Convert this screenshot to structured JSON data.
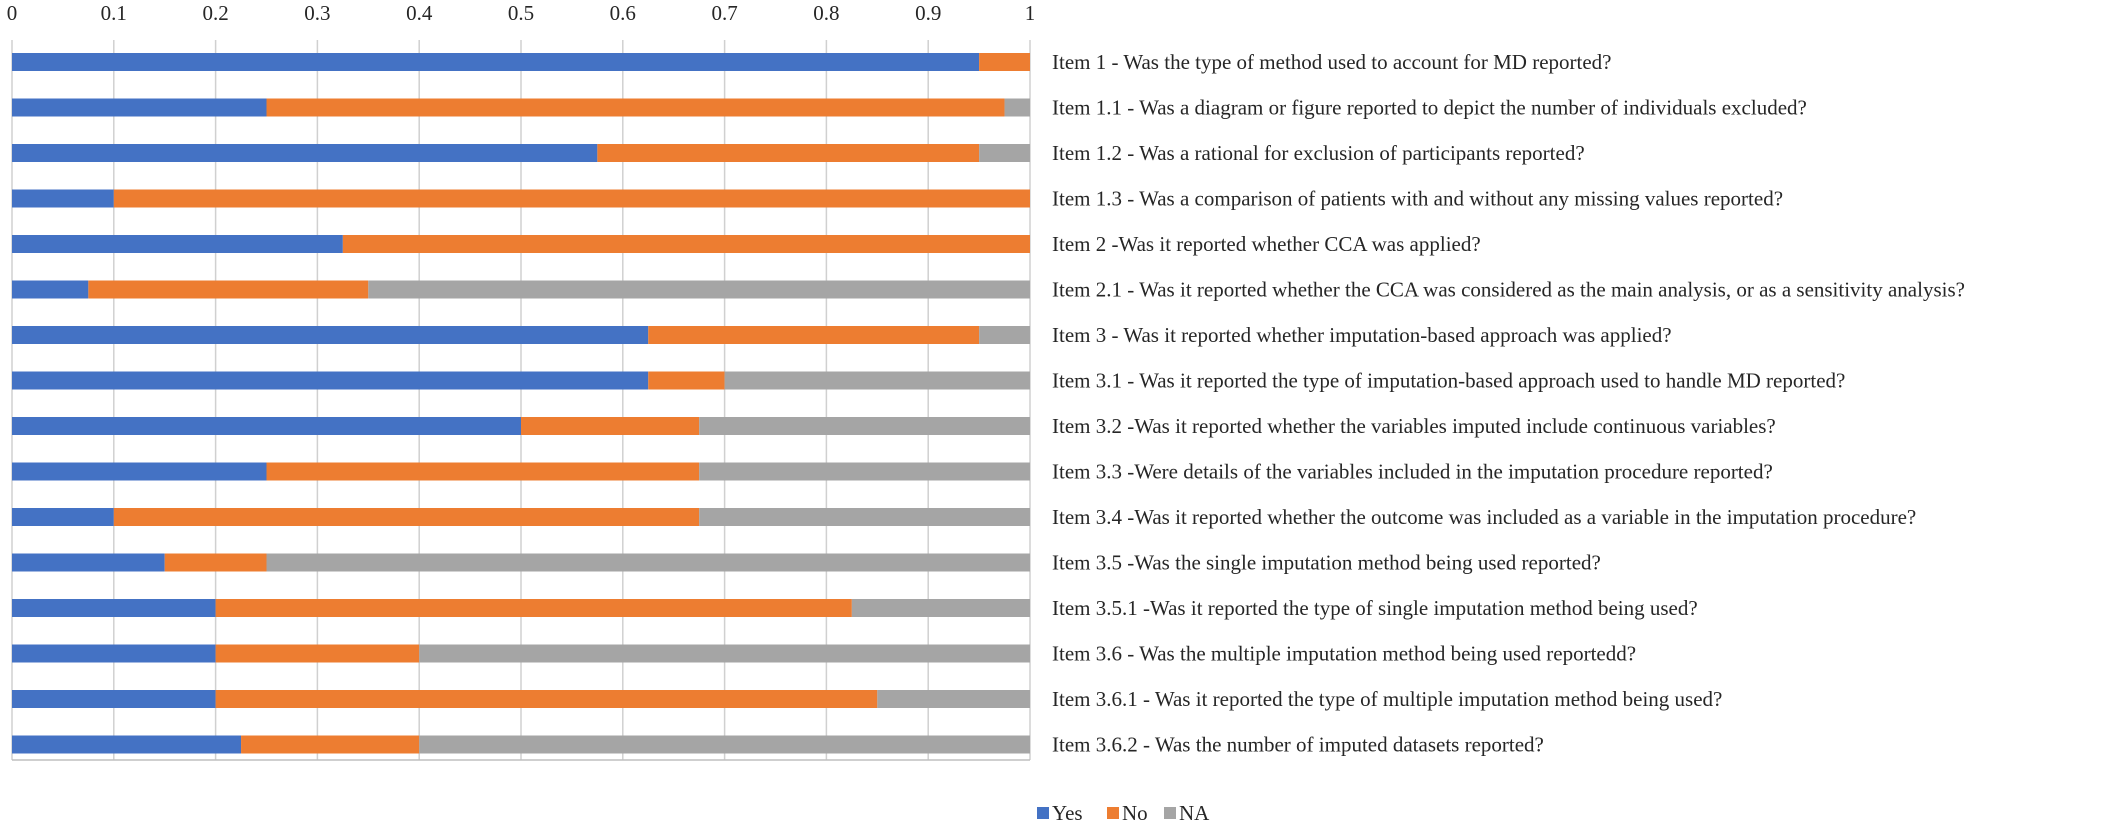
{
  "chart_data": {
    "type": "bar",
    "stacked": true,
    "orientation": "horizontal",
    "title": "",
    "xlabel": "",
    "ylabel": "",
    "xlim": [
      0,
      1
    ],
    "x_ticks": [
      "0",
      "0.1",
      "0.2",
      "0.3",
      "0.4",
      "0.5",
      "0.6",
      "0.7",
      "0.8",
      "0.9",
      "1"
    ],
    "x_axis_position": "top",
    "grid": true,
    "legend_position": "bottom-center",
    "categories": [
      "Item 1 - Was the type of method used to account for MD reported?",
      "Item 1.1 - Was a diagram or figure reported to depict the number of individuals excluded?",
      "Item 1.2 - Was a rational for exclusion of participants reported?",
      "Item 1.3 - Was a comparison of patients with and without any missing values reported?",
      "Item 2 -Was it reported whether CCA was applied?",
      "Item 2.1 - Was it reported whether the CCA was considered as the main analysis, or as a sensitivity analysis?",
      "Item 3 - Was it reported whether imputation-based approach was applied?",
      "Item 3.1 - Was it reported the type of imputation-based approach used to handle MD reported?",
      "Item 3.2 -Was it reported whether the variables imputed include continuous variables?",
      "Item 3.3 -Were details of the variables included in the imputation procedure reported?",
      "Item 3.4 -Was it reported whether the outcome was included as a variable in the imputation procedure?",
      "Item 3.5 -Was the single imputation method being used reported?",
      "Item 3.5.1 -Was it reported the type of single imputation method being used?",
      "Item 3.6 - Was the multiple imputation method being used reportedd?",
      "Item 3.6.1 - Was it reported the type of multiple imputation method being used?",
      "Item 3.6.2 - Was the number of imputed datasets reported?"
    ],
    "series": [
      {
        "name": "Yes",
        "color": "#4472c4",
        "values": [
          0.95,
          0.25,
          0.575,
          0.1,
          0.325,
          0.075,
          0.625,
          0.625,
          0.5,
          0.25,
          0.1,
          0.15,
          0.2,
          0.2,
          0.2,
          0.225
        ]
      },
      {
        "name": "No",
        "color": "#ed7d31",
        "values": [
          0.05,
          0.725,
          0.375,
          0.9,
          0.675,
          0.275,
          0.325,
          0.075,
          0.175,
          0.425,
          0.575,
          0.1,
          0.625,
          0.2,
          0.65,
          0.175
        ]
      },
      {
        "name": "NA",
        "color": "#a5a5a5",
        "values": [
          0.0,
          0.025,
          0.05,
          0.0,
          0.0,
          0.65,
          0.05,
          0.3,
          0.325,
          0.325,
          0.325,
          0.75,
          0.175,
          0.6,
          0.15,
          0.6
        ]
      }
    ]
  }
}
